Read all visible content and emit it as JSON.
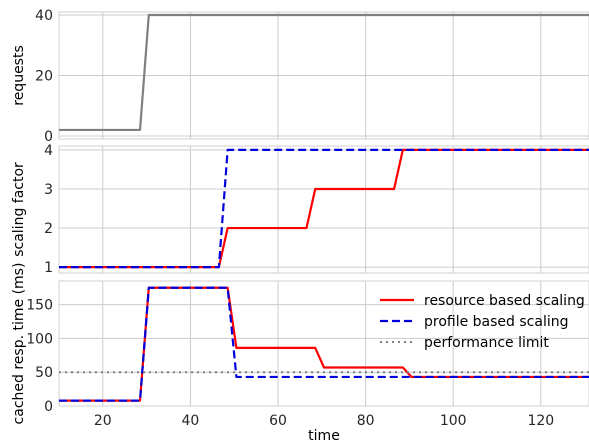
{
  "chart_data": [
    {
      "type": "line",
      "name": "requests",
      "ylabel": "requests",
      "xlim": [
        10,
        131
      ],
      "ylim": [
        -1,
        41
      ],
      "yticks": [
        0,
        20,
        40
      ],
      "grid": true,
      "series": [
        {
          "color": "#808080",
          "dash": "solid",
          "x": [
            10,
            28.5,
            30.5,
            131
          ],
          "y": [
            2,
            2,
            40,
            40
          ]
        }
      ]
    },
    {
      "type": "line",
      "name": "scaling",
      "ylabel": "scaling factor",
      "xlim": [
        10,
        131
      ],
      "ylim": [
        0.85,
        4.1
      ],
      "yticks": [
        1,
        2,
        3,
        4
      ],
      "grid": true,
      "series": [
        {
          "name": "resource based scaling",
          "color": "#ff0000",
          "dash": "solid",
          "x": [
            10,
            46.5,
            48.5,
            66.5,
            68.5,
            86.5,
            88.5,
            131
          ],
          "y": [
            1,
            1,
            2,
            2,
            3,
            3,
            4,
            4
          ]
        },
        {
          "name": "profile based scaling",
          "color": "#0000dd",
          "dash": "dashed",
          "x": [
            10,
            46.5,
            48.5,
            131
          ],
          "y": [
            1,
            1,
            4,
            4
          ]
        }
      ]
    },
    {
      "type": "line",
      "name": "response",
      "ylabel": "cached resp. time (ms)",
      "xlabel": "time",
      "xlim": [
        10,
        131
      ],
      "ylim": [
        0,
        185
      ],
      "yticks": [
        0,
        50,
        100,
        150
      ],
      "xticks": [
        20,
        40,
        60,
        80,
        100,
        120
      ],
      "grid": true,
      "legend": "top-right",
      "series": [
        {
          "name": "resource based scaling",
          "color": "#ff0000",
          "dash": "solid",
          "x": [
            10,
            28.5,
            30.5,
            48.5,
            50.5,
            68.5,
            70.5,
            88.5,
            90.5,
            131
          ],
          "y": [
            8,
            8,
            175,
            175,
            86,
            86,
            57,
            57,
            43,
            43
          ]
        },
        {
          "name": "profile based scaling",
          "color": "#0000dd",
          "dash": "dashed",
          "x": [
            10,
            28.5,
            30.5,
            48.5,
            50.5,
            131
          ],
          "y": [
            8,
            8,
            175,
            175,
            43,
            43
          ]
        },
        {
          "name": "performance limit",
          "color": "#808080",
          "dash": "dotted",
          "x": [
            10,
            131
          ],
          "y": [
            50,
            50
          ]
        }
      ]
    }
  ]
}
